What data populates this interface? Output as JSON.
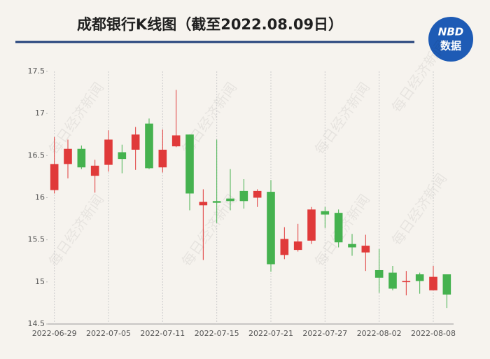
{
  "chart_data": {
    "type": "candlestick",
    "title": "成都银行K线图（截至2022.08.09日）",
    "logo": {
      "top": "NBD",
      "bottom": "数据"
    },
    "watermark": "每日经济新闻",
    "categories": [
      "2022-06-29",
      null,
      null,
      null,
      "2022-07-05",
      null,
      null,
      null,
      "2022-07-11",
      null,
      null,
      null,
      "2022-07-15",
      null,
      null,
      null,
      "2022-07-21",
      null,
      null,
      null,
      "2022-07-27",
      null,
      null,
      null,
      "2022-08-02",
      null,
      null,
      null,
      "2022-08-08",
      null
    ],
    "open": [
      16.09,
      16.4,
      16.58,
      16.26,
      16.39,
      16.54,
      16.57,
      16.88,
      16.36,
      16.61,
      16.75,
      15.91,
      15.96,
      15.99,
      16.08,
      16.0,
      16.07,
      15.32,
      15.38,
      15.49,
      15.84,
      15.82,
      15.45,
      15.35,
      15.14,
      15.11,
      15.0,
      15.09,
      14.9,
      15.09
    ],
    "high": [
      16.72,
      16.69,
      16.62,
      16.45,
      16.8,
      16.63,
      16.84,
      16.94,
      16.81,
      17.28,
      16.75,
      16.1,
      16.69,
      16.34,
      16.22,
      16.1,
      16.21,
      15.65,
      15.69,
      15.89,
      15.89,
      15.86,
      15.57,
      15.56,
      15.39,
      15.19,
      15.13,
      15.11,
      15.19,
      15.09
    ],
    "low": [
      16.05,
      16.23,
      16.34,
      16.06,
      16.31,
      16.29,
      16.33,
      16.34,
      16.3,
      16.6,
      15.85,
      15.26,
      15.7,
      15.85,
      15.87,
      15.89,
      15.12,
      15.27,
      15.36,
      15.45,
      15.64,
      15.41,
      15.31,
      15.13,
      14.87,
      14.9,
      14.84,
      14.86,
      14.9,
      14.69
    ],
    "close": [
      16.4,
      16.58,
      16.36,
      16.38,
      16.69,
      16.46,
      16.75,
      16.35,
      16.57,
      16.74,
      16.05,
      15.95,
      15.94,
      15.96,
      15.96,
      16.08,
      15.21,
      15.51,
      15.48,
      15.86,
      15.8,
      15.47,
      15.41,
      15.43,
      15.05,
      14.92,
      15.01,
      15.01,
      15.06,
      14.85
    ],
    "up_color": "#e03a3a",
    "down_color": "#45b24f",
    "ylim": [
      14.5,
      17.5
    ],
    "yticks": [
      14.5,
      15,
      15.5,
      16,
      16.5,
      17,
      17.5
    ],
    "grid": "x"
  }
}
